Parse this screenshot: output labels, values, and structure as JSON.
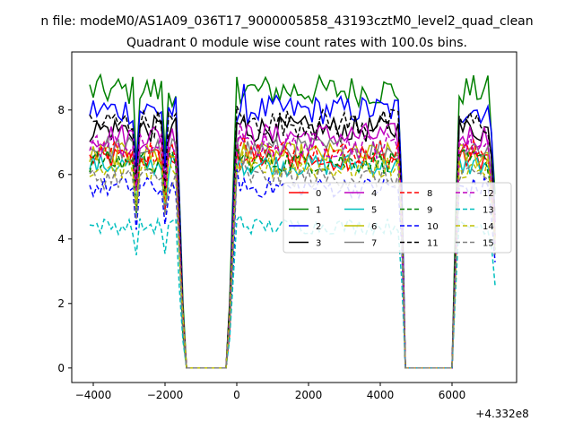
{
  "figure": {
    "suptitle": "n file: modeM0/AS1A09_036T17_9000005858_43193cztM0_level2_quad_clean",
    "title": "Quadrant 0 module wise count rates with 100.0s bins.",
    "offset_label": "+4.332e8"
  },
  "chart_data": {
    "type": "line",
    "title": "Quadrant 0 module wise count rates with 100.0s bins.",
    "xlabel": "",
    "ylabel": "",
    "x_offset": 433200000,
    "xlim": [
      -4600,
      7800
    ],
    "ylim": [
      -0.45,
      9.8
    ],
    "xticks": [
      -4000,
      -2000,
      0,
      2000,
      4000,
      6000
    ],
    "yticks": [
      0,
      2,
      4,
      6,
      8
    ],
    "grid": false,
    "legend": {
      "placement": "center-right",
      "columns": 4
    },
    "segments": [
      {
        "x": [
          -4100,
          7200
        ],
        "shape": "orbit-profile"
      }
    ],
    "series": [
      {
        "name": "0",
        "color": "#ff0000",
        "style": "solid",
        "level": 6.5
      },
      {
        "name": "1",
        "color": "#008000",
        "style": "solid",
        "level": 8.6
      },
      {
        "name": "2",
        "color": "#0000ff",
        "style": "solid",
        "level": 8.0
      },
      {
        "name": "3",
        "color": "#000000",
        "style": "solid",
        "level": 7.4
      },
      {
        "name": "4",
        "color": "#bf00bf",
        "style": "solid",
        "level": 7.2
      },
      {
        "name": "5",
        "color": "#00bfbf",
        "style": "solid",
        "level": 6.3
      },
      {
        "name": "6",
        "color": "#bfbf00",
        "style": "solid",
        "level": 6.6
      },
      {
        "name": "7",
        "color": "#808080",
        "style": "solid",
        "level": 6.8
      },
      {
        "name": "8",
        "color": "#ff0000",
        "style": "dashed",
        "level": 6.7
      },
      {
        "name": "9",
        "color": "#008000",
        "style": "dashed",
        "level": 6.4
      },
      {
        "name": "10",
        "color": "#0000ff",
        "style": "dashed",
        "level": 5.6
      },
      {
        "name": "11",
        "color": "#000000",
        "style": "dashed",
        "level": 7.6
      },
      {
        "name": "12",
        "color": "#bf00bf",
        "style": "dashed",
        "level": 6.9
      },
      {
        "name": "13",
        "color": "#00bfbf",
        "style": "dashed",
        "level": 4.4
      },
      {
        "name": "14",
        "color": "#bfbf00",
        "style": "dashed",
        "level": 6.2
      },
      {
        "name": "15",
        "color": "#808080",
        "style": "dashed",
        "level": 5.9
      }
    ],
    "profile": {
      "x_start": -4100,
      "x_end": 7200,
      "step": 100,
      "drop_start": -1700,
      "drop_end": -1450,
      "zero_start": -1450,
      "zero_end": -250,
      "rise_end": 0,
      "second_drop_start": 4550,
      "second_drop_end": 4700,
      "second_zero_end": 6000,
      "second_rise_end": 6200,
      "dips": [
        -2800,
        -2000
      ]
    }
  }
}
